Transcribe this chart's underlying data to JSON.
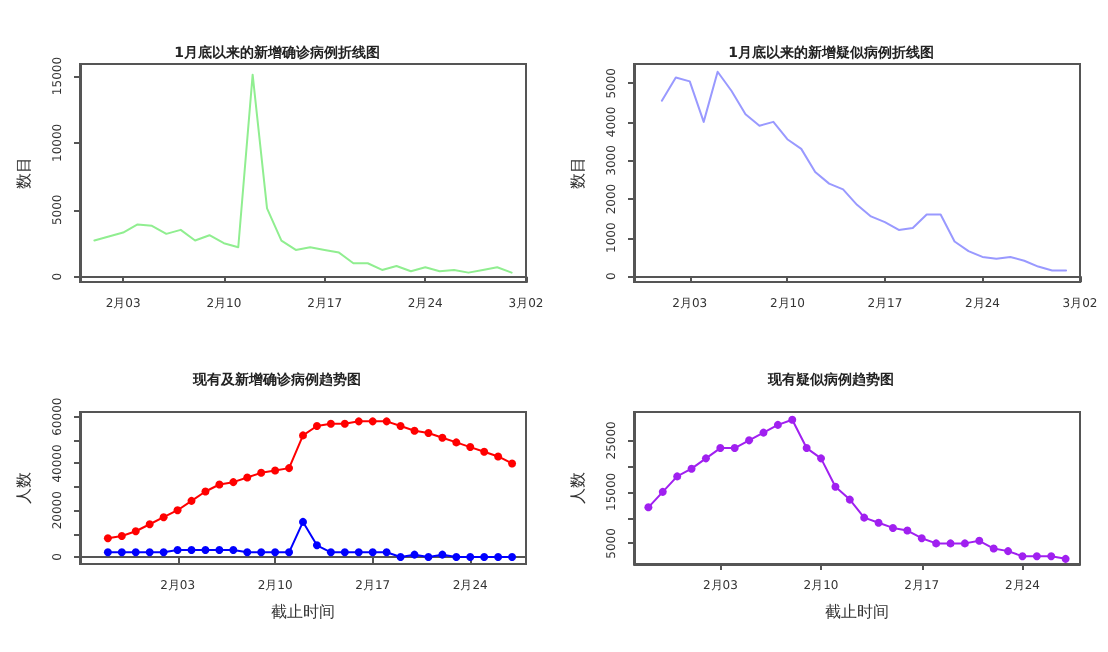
{
  "chart_data": [
    {
      "type": "line",
      "title": "1月底以来的新增确诊病例折线图",
      "ylabel": "数目",
      "x": [
        "--02-01",
        "--02-02",
        "--02-03",
        "--02-04",
        "--02-05",
        "--02-06",
        "--02-07",
        "--02-08",
        "--02-09",
        "--02-10",
        "--02-11",
        "--02-12",
        "--02-13",
        "--02-14",
        "--02-15",
        "--02-16",
        "--02-17",
        "--02-18",
        "--02-19",
        "--02-20",
        "--02-21",
        "--02-22",
        "--02-23",
        "--02-24",
        "--02-25",
        "--02-26",
        "--02-27",
        "--02-28",
        "--02-29",
        "--03-01"
      ],
      "series": [
        {
          "color": "#90ee90",
          "values": [
            2700,
            3000,
            3300,
            3900,
            3800,
            3200,
            3500,
            2700,
            3100,
            2500,
            2200,
            15100,
            5100,
            2700,
            2000,
            2200,
            2000,
            1800,
            1000,
            1000,
            500,
            800,
            400,
            700,
            400,
            500,
            300,
            500,
            700,
            300
          ]
        }
      ],
      "xlim": [
        "--01-31",
        "--03-02"
      ],
      "ylim": [
        -400,
        15900
      ],
      "xticks": [
        {
          "value": "--02-03",
          "label": "2月03"
        },
        {
          "value": "--02-10",
          "label": "2月10"
        },
        {
          "value": "--02-17",
          "label": "2月17"
        },
        {
          "value": "--02-24",
          "label": "2月24"
        },
        {
          "value": "--03-02",
          "label": "3月02"
        }
      ],
      "yticks": [
        0,
        5000,
        10000,
        15000
      ],
      "marker": "none",
      "line_style": "solid"
    },
    {
      "type": "line",
      "title": "1月底以来的新增疑似病例折线图",
      "ylabel": "数目",
      "x": [
        "--02-01",
        "--02-02",
        "--02-03",
        "--02-04",
        "--02-05",
        "--02-06",
        "--02-07",
        "--02-08",
        "--02-09",
        "--02-10",
        "--02-11",
        "--02-12",
        "--02-13",
        "--02-14",
        "--02-15",
        "--02-16",
        "--02-17",
        "--02-18",
        "--02-19",
        "--02-20",
        "--02-21",
        "--02-22",
        "--02-23",
        "--02-24",
        "--02-25",
        "--02-26",
        "--02-27",
        "--02-28",
        "--02-29",
        "--03-01"
      ],
      "series": [
        {
          "color": "#9999ff",
          "values": [
            4550,
            5150,
            5050,
            4000,
            5300,
            4800,
            4200,
            3900,
            4000,
            3550,
            3300,
            2700,
            2400,
            2250,
            1850,
            1550,
            1400,
            1200,
            1250,
            1600,
            1600,
            900,
            650,
            500,
            450,
            500,
            400,
            250,
            150,
            150
          ]
        }
      ],
      "xlim": [
        "--01-30",
        "--03-02"
      ],
      "ylim": [
        -150,
        5500
      ],
      "xticks": [
        {
          "value": "--02-03",
          "label": "2月03"
        },
        {
          "value": "--02-10",
          "label": "2月10"
        },
        {
          "value": "--02-17",
          "label": "2月17"
        },
        {
          "value": "--02-24",
          "label": "2月24"
        },
        {
          "value": "--03-02",
          "label": "3月02"
        }
      ],
      "yticks": [
        0,
        1000,
        2000,
        3000,
        4000,
        5000
      ],
      "marker": "none",
      "line_style": "solid"
    },
    {
      "type": "line",
      "title": "现有及新增确诊病例趋势图",
      "xlabel": "截止时间",
      "ylabel": "人数",
      "x": [
        "--01-29",
        "--01-30",
        "--01-31",
        "--02-01",
        "--02-02",
        "--02-03",
        "--02-04",
        "--02-05",
        "--02-06",
        "--02-07",
        "--02-08",
        "--02-09",
        "--02-10",
        "--02-11",
        "--02-12",
        "--02-13",
        "--02-14",
        "--02-15",
        "--02-16",
        "--02-17",
        "--02-18",
        "--02-19",
        "--02-20",
        "--02-21",
        "--02-22",
        "--02-23",
        "--02-24",
        "--02-25",
        "--02-26",
        "--02-27"
      ],
      "series": [
        {
          "color": "#ff0000",
          "values": [
            8000,
            9000,
            11000,
            14000,
            17000,
            20000,
            24000,
            28000,
            31000,
            32000,
            34000,
            36000,
            37000,
            38000,
            52000,
            56000,
            57000,
            57000,
            58000,
            58000,
            58000,
            56000,
            54000,
            53000,
            51000,
            49000,
            47000,
            45000,
            43000,
            40000
          ]
        },
        {
          "color": "#0000ff",
          "values": [
            2000,
            2000,
            2000,
            2000,
            2000,
            3000,
            3000,
            3000,
            3000,
            3000,
            2000,
            2000,
            2000,
            2000,
            15000,
            5000,
            2000,
            2000,
            2000,
            2000,
            2000,
            0,
            1000,
            0,
            1000,
            0,
            0,
            0,
            0,
            0
          ]
        }
      ],
      "xlim": [
        "--01-27",
        "--02-28"
      ],
      "ylim": [
        -3000,
        62000
      ],
      "xticks": [
        {
          "value": "--02-03",
          "label": "2月03"
        },
        {
          "value": "--02-10",
          "label": "2月10"
        },
        {
          "value": "--02-17",
          "label": "2月17"
        },
        {
          "value": "--02-24",
          "label": "2月24"
        }
      ],
      "yticks": [
        0,
        {
          "value": 10000,
          "label": null
        },
        20000,
        {
          "value": 30000,
          "label": null
        },
        40000,
        {
          "value": 50000,
          "label": null
        },
        60000
      ],
      "marker": "circle",
      "line_style": "solid"
    },
    {
      "type": "line",
      "title": "现有疑似病例趋势图",
      "xlabel": "截止时间",
      "ylabel": "人数",
      "x": [
        "--01-29",
        "--01-30",
        "--01-31",
        "--02-01",
        "--02-02",
        "--02-03",
        "--02-04",
        "--02-05",
        "--02-06",
        "--02-07",
        "--02-08",
        "--02-09",
        "--02-10",
        "--02-11",
        "--02-12",
        "--02-13",
        "--02-14",
        "--02-15",
        "--02-16",
        "--02-17",
        "--02-18",
        "--02-19",
        "--02-20",
        "--02-21",
        "--02-22",
        "--02-23",
        "--02-24",
        "--02-25",
        "--02-26",
        "--02-27"
      ],
      "series": [
        {
          "color": "#a020f0",
          "values": [
            12000,
            15000,
            18000,
            19500,
            21500,
            23500,
            23500,
            25000,
            26500,
            28000,
            29000,
            23500,
            21500,
            16000,
            13500,
            10000,
            9000,
            8000,
            7500,
            6000,
            5000,
            5000,
            5000,
            5500,
            4000,
            3500,
            2500,
            2500,
            2500,
            2000
          ]
        }
      ],
      "xlim": [
        "--01-28",
        "--02-28"
      ],
      "ylim": [
        1000,
        30500
      ],
      "xticks": [
        {
          "value": "--02-03",
          "label": "2月03"
        },
        {
          "value": "--02-10",
          "label": "2月10"
        },
        {
          "value": "--02-17",
          "label": "2月17"
        },
        {
          "value": "--02-24",
          "label": "2月24"
        }
      ],
      "yticks": [
        5000,
        {
          "value": 10000,
          "label": null
        },
        15000,
        {
          "value": 20000,
          "label": null
        },
        25000
      ],
      "marker": "circle",
      "line_style": "solid"
    }
  ]
}
